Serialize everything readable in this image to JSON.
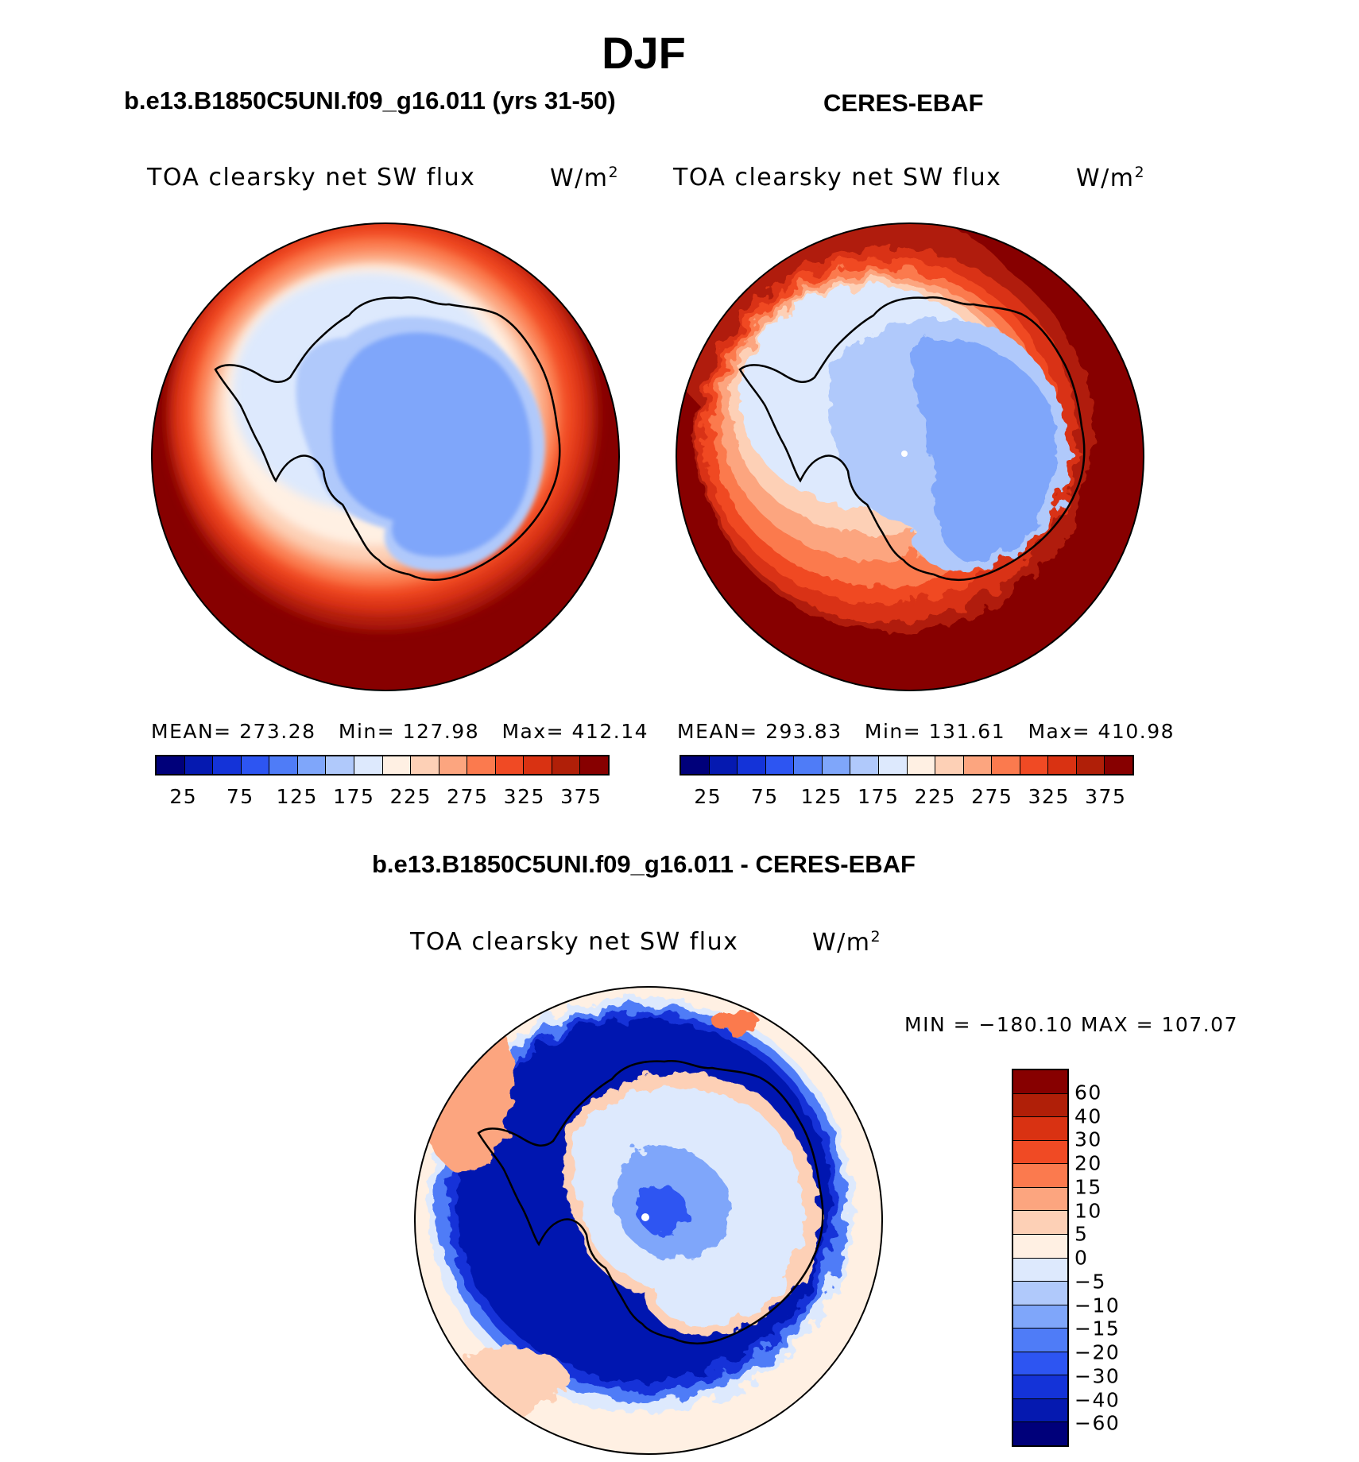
{
  "figure": {
    "season": "DJF",
    "left_panel_label": "b.e13.B1850C5UNI.f09_g16.011 (yrs 31-50)",
    "right_panel_label": "CERES-EBAF",
    "diff_panel_label": "b.e13.B1850C5UNI.f09_g16.011 - CERES-EBAF"
  },
  "panels": {
    "model": {
      "variable": "TOA clearsky net SW flux",
      "units_base": "W/m",
      "units_exp": "2",
      "stats": "MEAN= 273.28   Min= 127.98   Max= 412.14"
    },
    "obs": {
      "variable": "TOA clearsky net SW flux",
      "units_base": "W/m",
      "units_exp": "2",
      "stats": "MEAN= 293.83   Min= 131.61   Max= 410.98"
    },
    "diff": {
      "variable": "TOA clearsky net SW flux",
      "units_base": "W/m",
      "units_exp": "2",
      "stats": "MIN = −180.10 MAX = 107.07"
    }
  },
  "colorbars": {
    "abs_labels": [
      "25",
      "75",
      "125",
      "175",
      "225",
      "275",
      "325",
      "375"
    ],
    "abs_colors": [
      "#00007a",
      "#0519b0",
      "#1433d8",
      "#2d55f2",
      "#4f7cf7",
      "#7fa6fa",
      "#b0c9fb",
      "#dde9fd",
      "#fff0e3",
      "#fdd0b6",
      "#fca57f",
      "#fb7a4e",
      "#f04a24",
      "#d93212",
      "#b01f08",
      "#870000"
    ],
    "diff_labels": [
      "60",
      "40",
      "30",
      "20",
      "15",
      "10",
      "5",
      "0",
      "−5",
      "−10",
      "−15",
      "−20",
      "−30",
      "−40",
      "−60"
    ],
    "diff_colors": [
      "#870000",
      "#b01f08",
      "#d93212",
      "#f04a24",
      "#fb7a4e",
      "#fca57f",
      "#fdd0b6",
      "#fff0e3",
      "#dde9fd",
      "#b0c9fb",
      "#7fa6fa",
      "#4f7cf7",
      "#2d55f2",
      "#1433d8",
      "#0519b0",
      "#00007a"
    ]
  }
}
